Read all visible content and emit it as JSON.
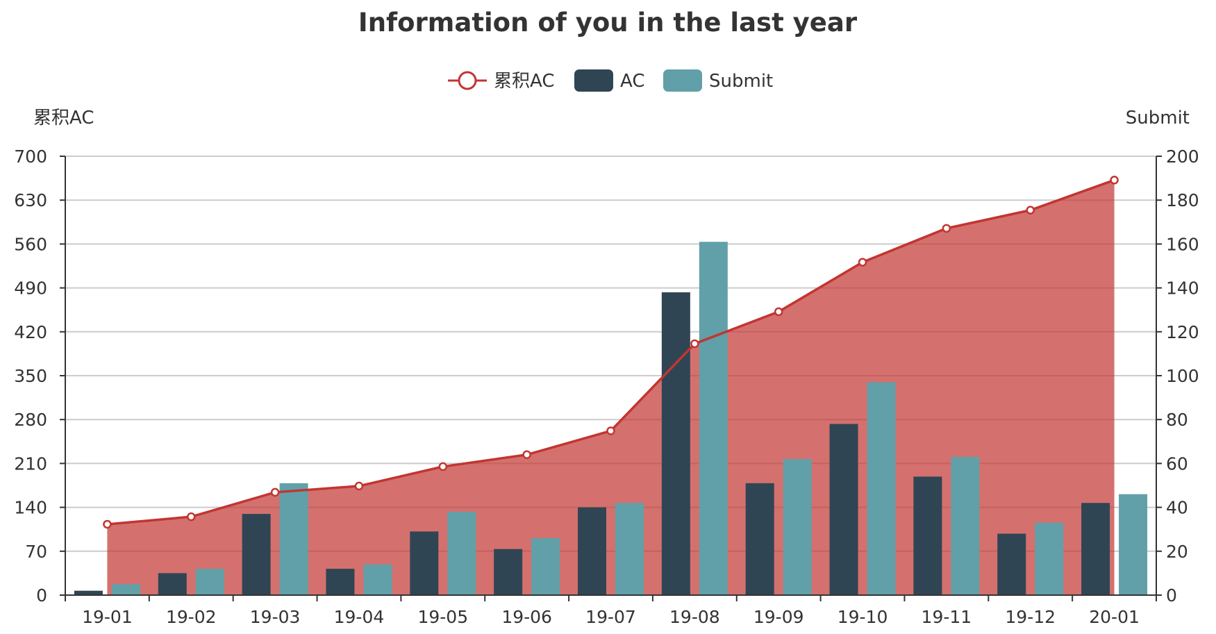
{
  "chart_data": {
    "type": "bar",
    "title": "Information of you in the last year",
    "categories": [
      "19-01",
      "19-02",
      "19-03",
      "19-04",
      "19-05",
      "19-06",
      "19-07",
      "19-08",
      "19-09",
      "19-10",
      "19-11",
      "19-12",
      "20-01"
    ],
    "series": [
      {
        "name": "累积AC",
        "type": "area-line",
        "axis": "left",
        "color": "#c23531",
        "values": [
          113,
          125,
          164,
          174,
          205,
          224,
          262,
          401,
          452,
          531,
          585,
          614,
          662
        ]
      },
      {
        "name": "AC",
        "type": "bar",
        "axis": "right",
        "color": "#2f4554",
        "values": [
          2,
          10,
          37,
          12,
          29,
          21,
          40,
          138,
          51,
          78,
          54,
          28,
          42
        ]
      },
      {
        "name": "Submit",
        "type": "bar",
        "axis": "right",
        "color": "#61a0a8",
        "values": [
          5,
          12,
          51,
          14,
          38,
          26,
          42,
          161,
          62,
          97,
          63,
          33,
          46
        ]
      }
    ],
    "y_left": {
      "name": "累积AC",
      "min": 0,
      "max": 700,
      "ticks": [
        0,
        70,
        140,
        210,
        280,
        350,
        420,
        490,
        560,
        630,
        700
      ]
    },
    "y_right": {
      "name": "Submit",
      "min": 0,
      "max": 200,
      "ticks": [
        0,
        20,
        40,
        60,
        80,
        100,
        120,
        140,
        160,
        180,
        200
      ]
    },
    "legend": {
      "position": "top-center",
      "items": [
        "累积AC",
        "AC",
        "Submit"
      ]
    },
    "grid": true
  }
}
